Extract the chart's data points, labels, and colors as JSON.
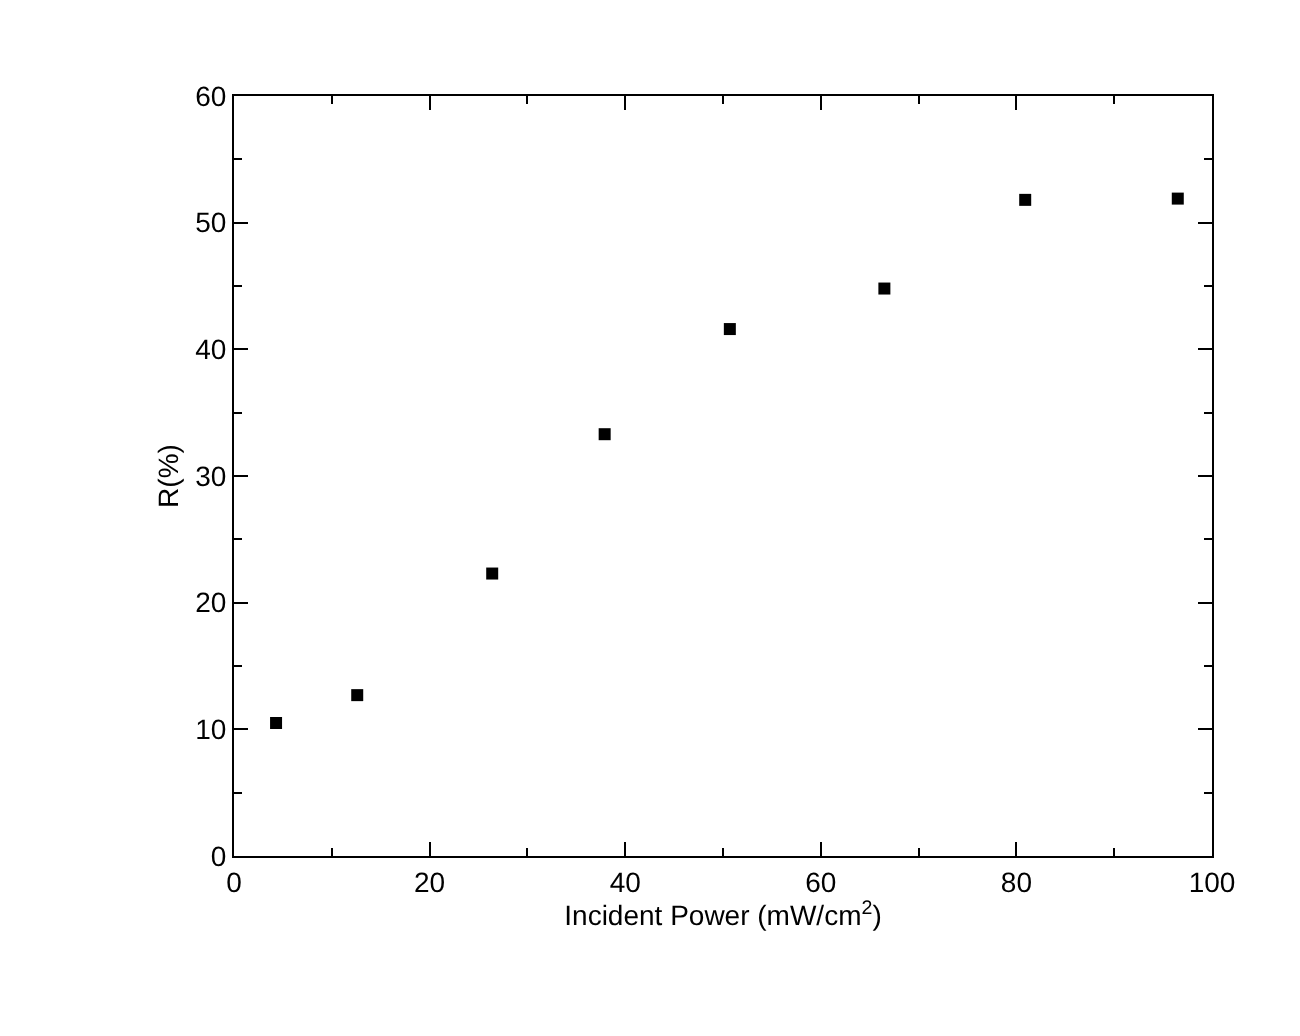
{
  "chart_data": {
    "type": "scatter",
    "xlabel": "Incident Power (mW/cm$^{2}$)",
    "ylabel": "R(%)",
    "x": [
      4.3,
      12.6,
      26.4,
      37.9,
      50.7,
      66.5,
      80.9,
      96.5
    ],
    "series": [
      {
        "color": "#000000",
        "values": [
          10.5,
          12.7,
          22.3,
          33.3,
          41.6,
          44.8,
          51.8,
          51.9
        ]
      }
    ],
    "xlim": [
      0,
      100
    ],
    "xticks": [
      0,
      20,
      40,
      60,
      80,
      100
    ],
    "ylim": [
      0,
      60
    ],
    "yticks": [
      0,
      10,
      20,
      30,
      40,
      50,
      60
    ],
    "marker": "square"
  }
}
